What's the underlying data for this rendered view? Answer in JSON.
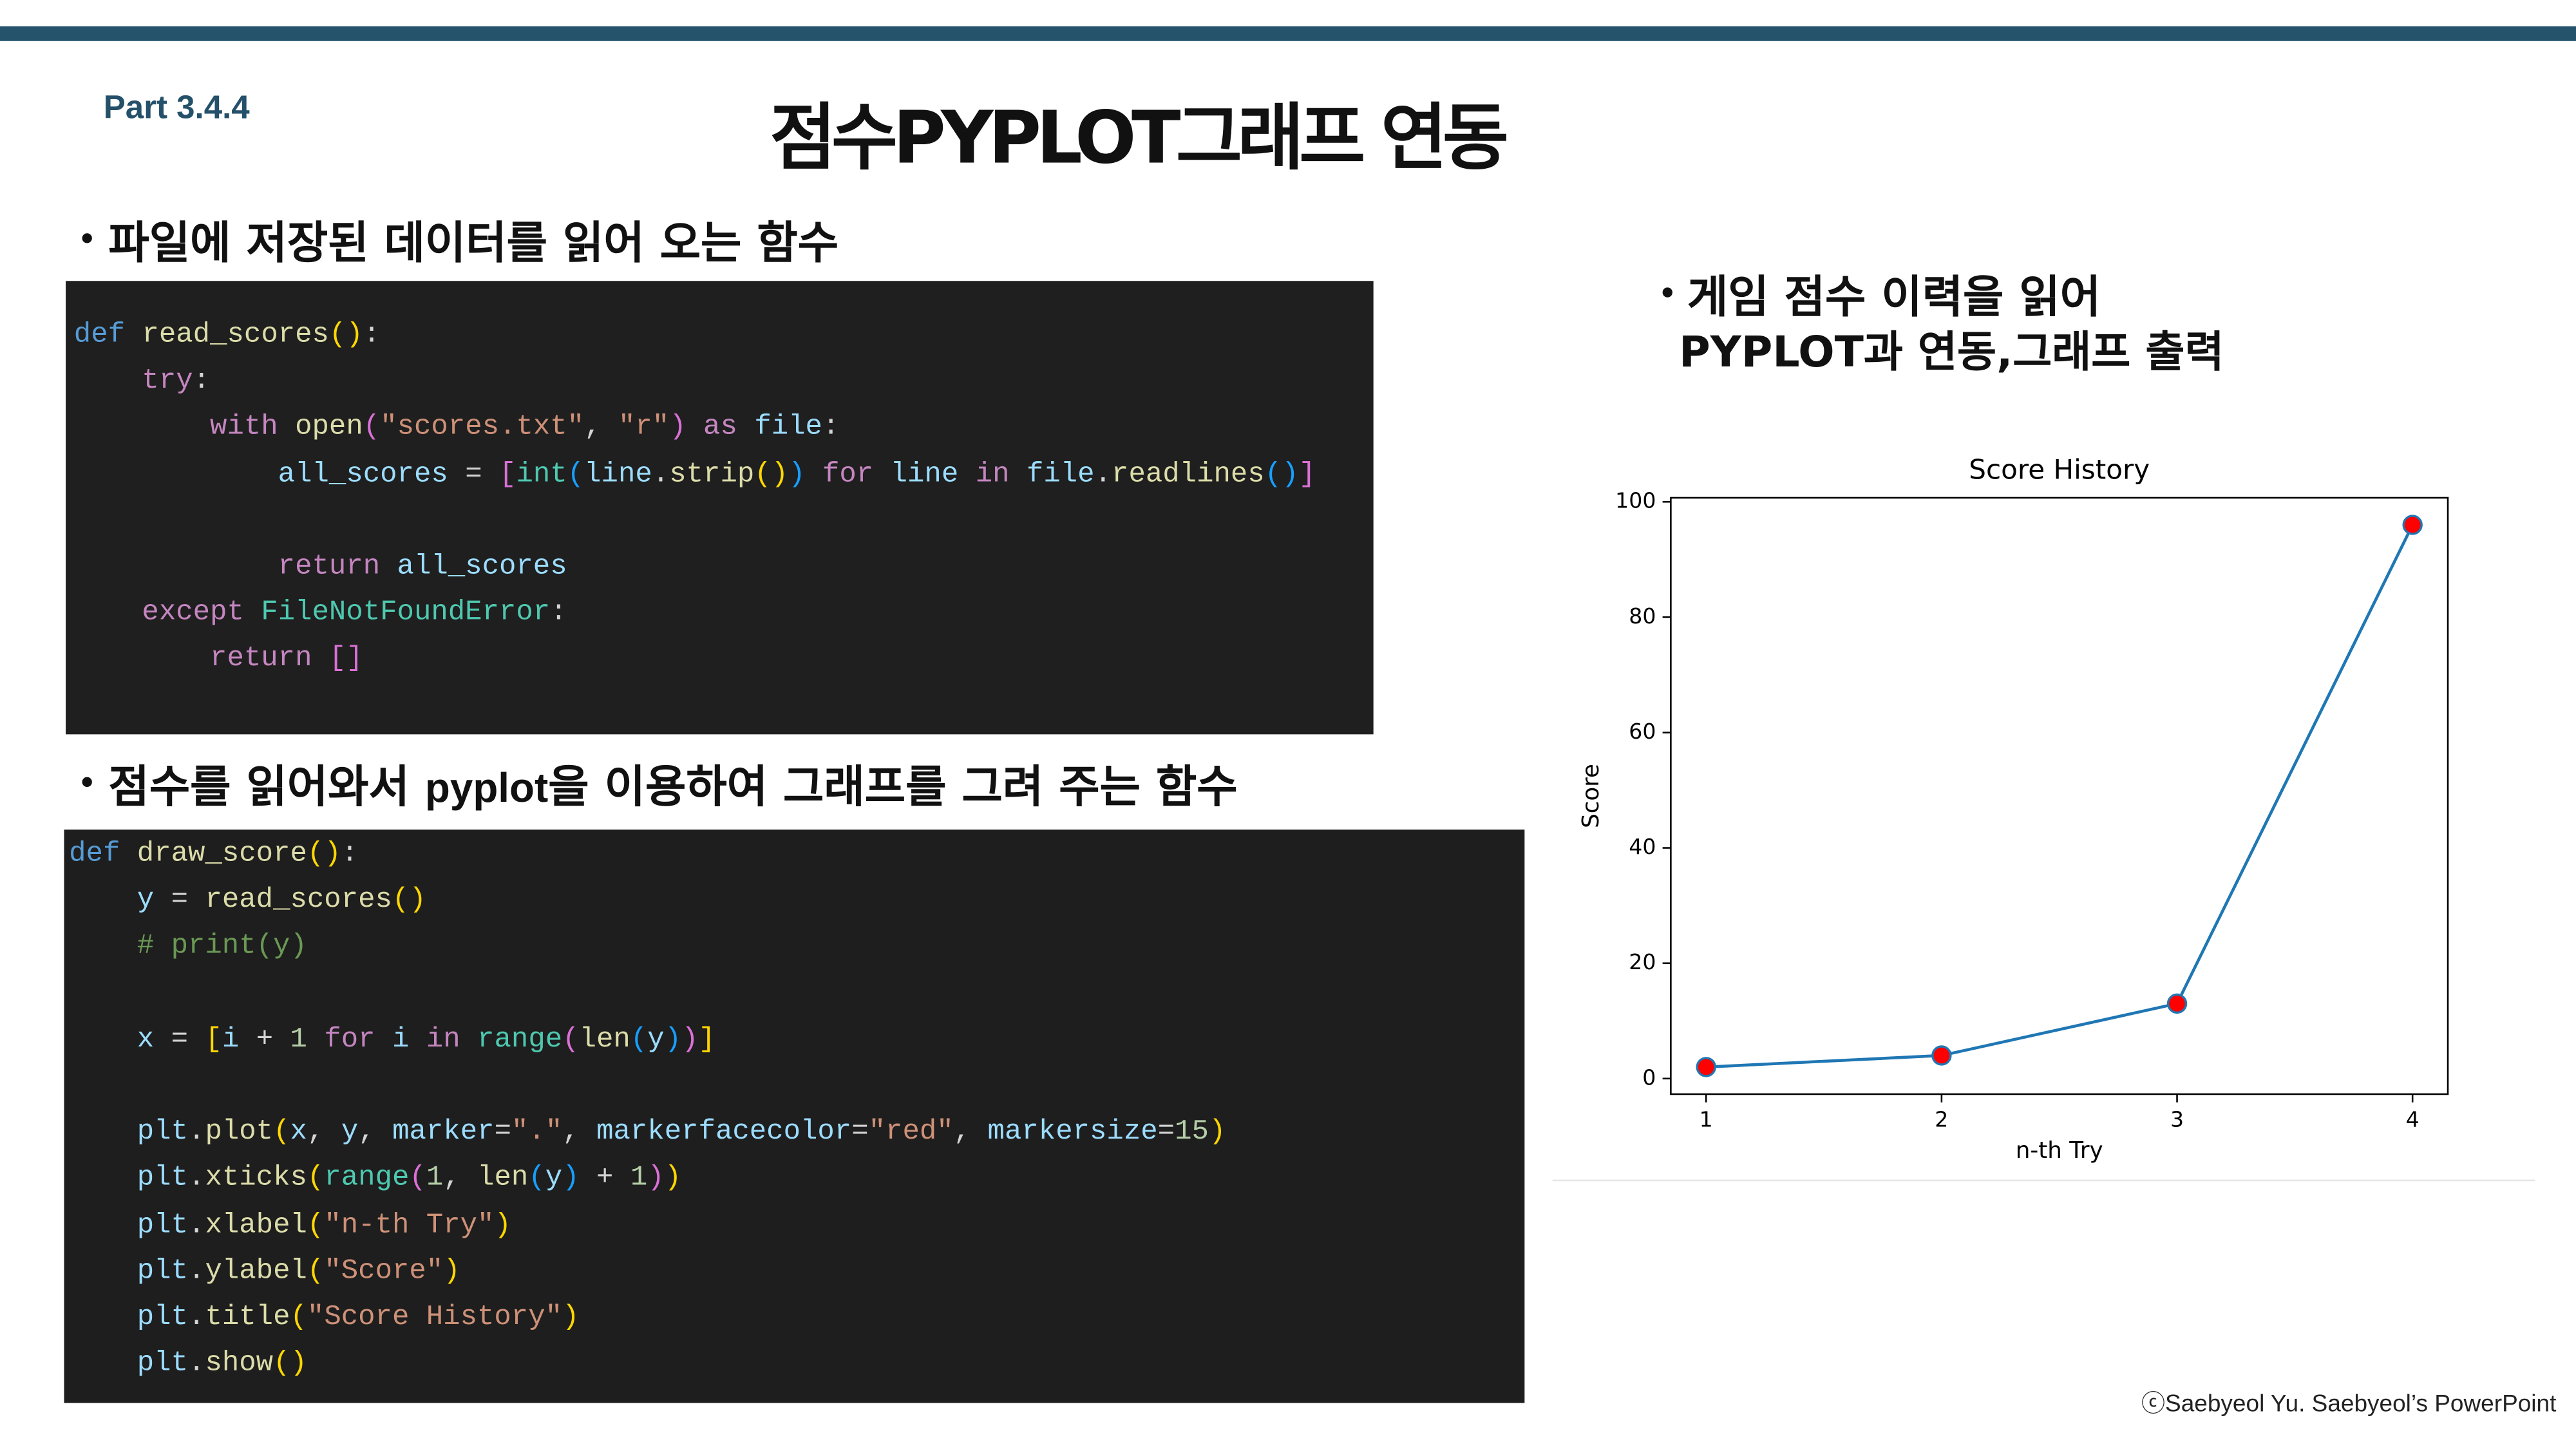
{
  "header": {
    "part": "Part 3.4.4",
    "title": "점수PYPLOT그래프 연동"
  },
  "section1": {
    "heading": "파일에 저장된 데이터를 읽어 오는 함수",
    "code": {
      "lines": [
        [
          [
            "def ",
            "#569cd6"
          ],
          [
            "read_scores",
            "#dcdcaa"
          ],
          [
            "()",
            "#ffd700"
          ],
          [
            ":",
            "#d4d4d4"
          ]
        ],
        [
          [
            "    try",
            "#c586c0"
          ],
          [
            ":",
            "#d4d4d4"
          ]
        ],
        [
          [
            "        with ",
            "#c586c0"
          ],
          [
            "open",
            "#dcdcaa"
          ],
          [
            "(",
            "#da70d6"
          ],
          [
            "\"scores.txt\"",
            "#ce9178"
          ],
          [
            ", ",
            "#d4d4d4"
          ],
          [
            "\"r\"",
            "#ce9178"
          ],
          [
            ")",
            "#da70d6"
          ],
          [
            " as ",
            "#c586c0"
          ],
          [
            "file",
            "#9cdcfe"
          ],
          [
            ":",
            "#d4d4d4"
          ]
        ],
        [
          [
            "            all_scores",
            "#9cdcfe"
          ],
          [
            " = ",
            "#d4d4d4"
          ],
          [
            "[",
            "#da70d6"
          ],
          [
            "int",
            "#4ec9b0"
          ],
          [
            "(",
            "#179fff"
          ],
          [
            "line",
            "#9cdcfe"
          ],
          [
            ".",
            "#d4d4d4"
          ],
          [
            "strip",
            "#dcdcaa"
          ],
          [
            "()",
            "#ffd700"
          ],
          [
            ")",
            "#179fff"
          ],
          [
            " for ",
            "#c586c0"
          ],
          [
            "line",
            "#9cdcfe"
          ],
          [
            " in ",
            "#c586c0"
          ],
          [
            "file",
            "#9cdcfe"
          ],
          [
            ".",
            "#d4d4d4"
          ],
          [
            "readlines",
            "#dcdcaa"
          ],
          [
            "()",
            "#179fff"
          ],
          [
            "]",
            "#da70d6"
          ]
        ],
        [],
        [
          [
            "            return ",
            "#c586c0"
          ],
          [
            "all_scores",
            "#9cdcfe"
          ]
        ],
        [
          [
            "    except ",
            "#c586c0"
          ],
          [
            "FileNotFoundError",
            "#4ec9b0"
          ],
          [
            ":",
            "#d4d4d4"
          ]
        ],
        [
          [
            "        return ",
            "#c586c0"
          ],
          [
            "[]",
            "#da70d6"
          ]
        ]
      ]
    }
  },
  "section2": {
    "heading_parts": [
      "점수를 읽어와서 ",
      "pyplot",
      "을 이용하여 그래프를 그려 주는 함수"
    ],
    "code": {
      "lines": [
        [
          [
            "def ",
            "#569cd6"
          ],
          [
            "draw_score",
            "#dcdcaa"
          ],
          [
            "()",
            "#ffd700"
          ],
          [
            ":",
            "#d4d4d4"
          ]
        ],
        [
          [
            "    y",
            "#9cdcfe"
          ],
          [
            " = ",
            "#d4d4d4"
          ],
          [
            "read_scores",
            "#dcdcaa"
          ],
          [
            "()",
            "#ffd700"
          ]
        ],
        [
          [
            "    # print(y)",
            "#6a9955"
          ]
        ],
        [],
        [
          [
            "    x",
            "#9cdcfe"
          ],
          [
            " = ",
            "#d4d4d4"
          ],
          [
            "[",
            "#ffd700"
          ],
          [
            "i",
            "#9cdcfe"
          ],
          [
            " + ",
            "#d4d4d4"
          ],
          [
            "1",
            "#b5cea8"
          ],
          [
            " for ",
            "#c586c0"
          ],
          [
            "i",
            "#9cdcfe"
          ],
          [
            " in ",
            "#c586c0"
          ],
          [
            "range",
            "#4ec9b0"
          ],
          [
            "(",
            "#da70d6"
          ],
          [
            "len",
            "#dcdcaa"
          ],
          [
            "(",
            "#179fff"
          ],
          [
            "y",
            "#9cdcfe"
          ],
          [
            ")",
            "#179fff"
          ],
          [
            ")",
            "#da70d6"
          ],
          [
            "]",
            "#ffd700"
          ]
        ],
        [],
        [
          [
            "    plt",
            "#9cdcfe"
          ],
          [
            ".",
            "#d4d4d4"
          ],
          [
            "plot",
            "#dcdcaa"
          ],
          [
            "(",
            "#ffd700"
          ],
          [
            "x",
            "#9cdcfe"
          ],
          [
            ", ",
            "#d4d4d4"
          ],
          [
            "y",
            "#9cdcfe"
          ],
          [
            ", ",
            "#d4d4d4"
          ],
          [
            "marker",
            "#9cdcfe"
          ],
          [
            "=",
            "#d4d4d4"
          ],
          [
            "\".\"",
            "#ce9178"
          ],
          [
            ", ",
            "#d4d4d4"
          ],
          [
            "markerfacecolor",
            "#9cdcfe"
          ],
          [
            "=",
            "#d4d4d4"
          ],
          [
            "\"red\"",
            "#ce9178"
          ],
          [
            ", ",
            "#d4d4d4"
          ],
          [
            "markersize",
            "#9cdcfe"
          ],
          [
            "=",
            "#d4d4d4"
          ],
          [
            "15",
            "#b5cea8"
          ],
          [
            ")",
            "#ffd700"
          ]
        ],
        [
          [
            "    plt",
            "#9cdcfe"
          ],
          [
            ".",
            "#d4d4d4"
          ],
          [
            "xticks",
            "#dcdcaa"
          ],
          [
            "(",
            "#ffd700"
          ],
          [
            "range",
            "#4ec9b0"
          ],
          [
            "(",
            "#da70d6"
          ],
          [
            "1",
            "#b5cea8"
          ],
          [
            ", ",
            "#d4d4d4"
          ],
          [
            "len",
            "#dcdcaa"
          ],
          [
            "(",
            "#179fff"
          ],
          [
            "y",
            "#9cdcfe"
          ],
          [
            ")",
            "#179fff"
          ],
          [
            " + ",
            "#d4d4d4"
          ],
          [
            "1",
            "#b5cea8"
          ],
          [
            ")",
            "#da70d6"
          ],
          [
            ")",
            "#ffd700"
          ]
        ],
        [
          [
            "    plt",
            "#9cdcfe"
          ],
          [
            ".",
            "#d4d4d4"
          ],
          [
            "xlabel",
            "#dcdcaa"
          ],
          [
            "(",
            "#ffd700"
          ],
          [
            "\"n-th Try\"",
            "#ce9178"
          ],
          [
            ")",
            "#ffd700"
          ]
        ],
        [
          [
            "    plt",
            "#9cdcfe"
          ],
          [
            ".",
            "#d4d4d4"
          ],
          [
            "ylabel",
            "#dcdcaa"
          ],
          [
            "(",
            "#ffd700"
          ],
          [
            "\"Score\"",
            "#ce9178"
          ],
          [
            ")",
            "#ffd700"
          ]
        ],
        [
          [
            "    plt",
            "#9cdcfe"
          ],
          [
            ".",
            "#d4d4d4"
          ],
          [
            "title",
            "#dcdcaa"
          ],
          [
            "(",
            "#ffd700"
          ],
          [
            "\"Score History\"",
            "#ce9178"
          ],
          [
            ")",
            "#ffd700"
          ]
        ],
        [
          [
            "    plt",
            "#9cdcfe"
          ],
          [
            ".",
            "#d4d4d4"
          ],
          [
            "show",
            "#dcdcaa"
          ],
          [
            "()",
            "#ffd700"
          ]
        ]
      ]
    }
  },
  "section3": {
    "heading_lines": [
      "게임 점수 이력을 읽어",
      "PYPLOT과 연동,그래프 출력"
    ]
  },
  "chart_data": {
    "type": "line",
    "title": "Score History",
    "x_label": "n-th Try",
    "y_label": "Score",
    "x": [
      1,
      2,
      3,
      4
    ],
    "series": [
      {
        "values": [
          2,
          4,
          13,
          96
        ],
        "color": "#1f77b4",
        "marker_color": "#ff0000"
      }
    ],
    "xlim": [
      0.85,
      4.15
    ],
    "ylim": [
      -2.7,
      100.7
    ],
    "xticks": [
      1,
      2,
      3,
      4
    ],
    "yticks": [
      0,
      20,
      40,
      60,
      80,
      100
    ]
  },
  "footer": "ⓒSaebyeol Yu. Saebyeol’s PowerPoint"
}
